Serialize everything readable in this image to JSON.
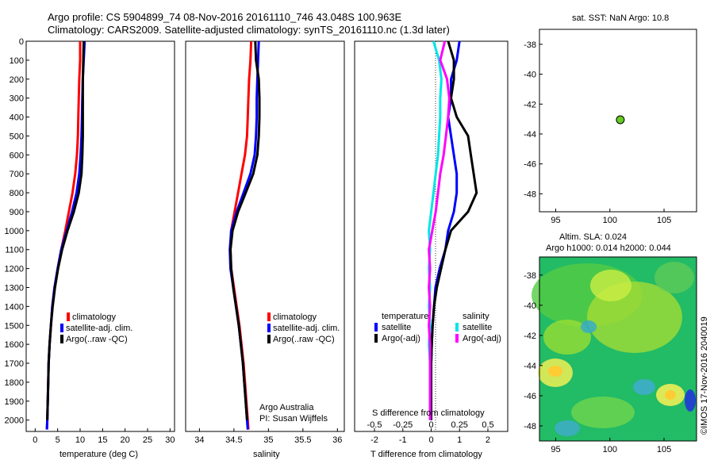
{
  "header": {
    "line1": "Argo profile: CS 5904899_74 08-Nov-2016 20161110_746 43.048S 100.963E",
    "line2": "Climatology: CARS2009. Satellite-adjusted climatology: synTS_20161110.nc (1.3d later)"
  },
  "depth_ticks": [
    "0",
    "100",
    "200",
    "300",
    "400",
    "500",
    "600",
    "700",
    "800",
    "900",
    "1000",
    "1100",
    "1200",
    "1300",
    "1400",
    "1500",
    "1600",
    "1700",
    "1800",
    "1900",
    "2000"
  ],
  "colors": {
    "climatology": "#ff0000",
    "satellite": "#0000ff",
    "argo": "#000000",
    "satellite_s": "#00e5e5",
    "argo_s": "#ff00ff",
    "sst_dot": "#66cc22"
  },
  "temp_panel": {
    "xlabel": "temperature (deg C)",
    "xticks": [
      "0",
      "5",
      "10",
      "15",
      "20",
      "25",
      "30"
    ],
    "legend": [
      "climatology",
      "satellite-adj. clim.",
      "Argo(..raw -QC)"
    ]
  },
  "sal_panel": {
    "xlabel": "salinity",
    "xticks": [
      "34",
      "34.5",
      "35",
      "35.5",
      "36"
    ],
    "legend": [
      "climatology",
      "satellite-adj. clim.",
      "Argo(..raw -QC)"
    ],
    "credit1": "Argo Australia",
    "credit2": "PI: Susan Wijffels"
  },
  "diff_panel": {
    "xlabel": "T difference from climatology",
    "xlabel_s": "S difference from climatology",
    "xticks": [
      "-2",
      "-1",
      "0",
      "1",
      "2"
    ],
    "xticks_s": [
      "-0.5",
      "-0.25",
      "0",
      "0.25",
      "0.5"
    ],
    "legend_t_title": "temperature",
    "legend_s_title": "salinity",
    "legend_t": [
      "satellite",
      "Argo(-adj)"
    ],
    "legend_s": [
      "satellite",
      "Argo(-adj)"
    ]
  },
  "map_panel": {
    "title": "sat. SST: NaN Argo: 10.8",
    "yticks": [
      "-38",
      "-40",
      "-42",
      "-44",
      "-46",
      "-48"
    ],
    "xticks": [
      "95",
      "100",
      "105"
    ],
    "point": {
      "lon": 100.963,
      "lat": -43.048
    }
  },
  "sla_panel": {
    "title1": "Altim. SLA: 0.024",
    "title2": "Argo h1000: 0.014 h2000: 0.044",
    "yticks": [
      "-38",
      "-40",
      "-42",
      "-44",
      "-46",
      "-48"
    ],
    "xticks": [
      "95",
      "100",
      "105"
    ],
    "watermark": "©IMOS 17-Nov-2016 2040019"
  },
  "chart_data": [
    {
      "type": "line",
      "xlabel": "temperature (deg C)",
      "ylabel": "",
      "xlim": [
        -2,
        31
      ],
      "ylim": [
        2060,
        0
      ],
      "series": [
        {
          "name": "climatology",
          "x": [
            10,
            10,
            9.8,
            9.7,
            9.6,
            9.5,
            9.3,
            8.9,
            8.3,
            7.5,
            6.7,
            5.8,
            5.0,
            4.3,
            3.8,
            3.5,
            3.2,
            3.0,
            2.9,
            2.8,
            2.7,
            2.6
          ],
          "y": [
            0,
            100,
            200,
            300,
            400,
            500,
            600,
            700,
            800,
            900,
            1000,
            1100,
            1200,
            1300,
            1400,
            1500,
            1600,
            1700,
            1800,
            1900,
            2000,
            2050
          ]
        },
        {
          "name": "satellite-adj. clim.",
          "x": [
            11,
            10.8,
            10.6,
            10.5,
            10.4,
            10.3,
            10.1,
            9.8,
            9.2,
            8.2,
            7.0,
            5.8,
            5.0,
            4.3,
            3.8,
            3.5,
            3.2,
            3.0,
            2.9,
            2.8,
            2.7,
            2.6
          ],
          "y": [
            0,
            100,
            200,
            300,
            400,
            500,
            600,
            700,
            800,
            900,
            1000,
            1100,
            1200,
            1300,
            1400,
            1500,
            1600,
            1700,
            1800,
            1900,
            2000,
            2050
          ]
        },
        {
          "name": "Argo(..raw -QC)",
          "x": [
            10.8,
            10.7,
            10.6,
            10.6,
            10.6,
            10.6,
            10.5,
            10.3,
            9.7,
            8.6,
            7.2,
            6.0,
            5.1,
            4.4,
            3.9,
            3.5,
            3.2,
            3.0,
            2.9,
            2.8,
            2.7
          ],
          "y": [
            0,
            100,
            200,
            300,
            400,
            500,
            600,
            700,
            800,
            900,
            1000,
            1100,
            1200,
            1300,
            1400,
            1500,
            1600,
            1700,
            1800,
            1900,
            2000
          ]
        }
      ]
    },
    {
      "type": "line",
      "xlabel": "salinity",
      "ylabel": "",
      "xlim": [
        33.8,
        36.1
      ],
      "ylim": [
        2060,
        0
      ],
      "series": [
        {
          "name": "climatology",
          "x": [
            34.75,
            34.74,
            34.72,
            34.71,
            34.7,
            34.69,
            34.66,
            34.61,
            34.56,
            34.51,
            34.46,
            34.45,
            34.46,
            34.5,
            34.54,
            34.58,
            34.61,
            34.64,
            34.66,
            34.68,
            34.7,
            34.71
          ],
          "y": [
            0,
            100,
            200,
            300,
            400,
            500,
            600,
            700,
            800,
            900,
            1000,
            1100,
            1200,
            1300,
            1400,
            1500,
            1600,
            1700,
            1800,
            1900,
            2000,
            2050
          ]
        },
        {
          "name": "satellite-adj. clim.",
          "x": [
            34.86,
            34.85,
            34.84,
            34.83,
            34.83,
            34.82,
            34.8,
            34.74,
            34.64,
            34.54,
            34.46,
            34.44,
            34.45,
            34.49,
            34.53,
            34.57,
            34.6,
            34.63,
            34.65,
            34.67,
            34.69,
            34.7
          ],
          "y": [
            0,
            100,
            200,
            300,
            400,
            500,
            600,
            700,
            800,
            900,
            1000,
            1100,
            1200,
            1300,
            1400,
            1500,
            1600,
            1700,
            1800,
            1900,
            2000,
            2050
          ]
        },
        {
          "name": "Argo(..raw -QC)",
          "x": [
            34.81,
            34.82,
            34.86,
            34.87,
            34.87,
            34.86,
            34.84,
            34.78,
            34.67,
            34.56,
            34.48,
            34.45,
            34.46,
            34.49,
            34.53,
            34.57,
            34.6,
            34.63,
            34.65,
            34.67,
            34.69
          ],
          "y": [
            0,
            100,
            200,
            300,
            400,
            500,
            600,
            700,
            800,
            900,
            1000,
            1100,
            1200,
            1300,
            1400,
            1500,
            1600,
            1700,
            1800,
            1900,
            2000
          ]
        }
      ]
    },
    {
      "type": "line",
      "xlabel": "T difference from climatology",
      "ylabel": "",
      "xlim": [
        -2.7,
        2.7
      ],
      "ylim": [
        2060,
        0
      ],
      "series": [
        {
          "name": "temperature satellite",
          "x": [
            1.0,
            0.9,
            0.7,
            0.7,
            0.6,
            0.7,
            0.8,
            0.9,
            0.9,
            0.8,
            0.6,
            0.5,
            0.3,
            0.15,
            0.1,
            0.05,
            0.02,
            0.0,
            0.0,
            0.0,
            0.0
          ],
          "y": [
            0,
            100,
            200,
            300,
            400,
            500,
            600,
            700,
            800,
            900,
            1000,
            1100,
            1200,
            1300,
            1400,
            1500,
            1600,
            1700,
            1800,
            1900,
            2000
          ]
        },
        {
          "name": "temperature Argo(-adj)",
          "x": [
            0.6,
            0.8,
            0.8,
            0.7,
            0.9,
            1.3,
            1.4,
            1.5,
            1.6,
            1.3,
            0.7,
            0.5,
            0.35,
            0.2,
            0.1,
            0.05,
            0.02,
            0.0,
            0.0,
            0.0,
            0.0
          ],
          "y": [
            0,
            100,
            200,
            300,
            400,
            500,
            600,
            700,
            800,
            900,
            1000,
            1100,
            1200,
            1300,
            1400,
            1500,
            1600,
            1700,
            1800,
            1900,
            2000
          ]
        }
      ]
    },
    {
      "type": "line",
      "xlabel": "S difference from climatology",
      "ylabel": "",
      "xlim": [
        -0.675,
        0.675
      ],
      "ylim": [
        2060,
        0
      ],
      "series": [
        {
          "name": "salinity satellite",
          "x": [
            0.02,
            0.07,
            0.09,
            0.08,
            0.08,
            0.07,
            0.06,
            0.04,
            0.02,
            0.0,
            -0.02,
            -0.01,
            -0.02,
            -0.01,
            -0.02,
            -0.01,
            -0.02,
            -0.01,
            -0.01,
            -0.01,
            -0.01
          ],
          "y": [
            0,
            100,
            200,
            300,
            400,
            500,
            600,
            700,
            800,
            900,
            1000,
            1100,
            1200,
            1300,
            1400,
            1500,
            1600,
            1700,
            1800,
            1900,
            2000
          ]
        },
        {
          "name": "salinity Argo(-adj)",
          "x": [
            0.12,
            0.08,
            0.14,
            0.16,
            0.15,
            0.13,
            0.11,
            0.08,
            0.06,
            0.04,
            0.01,
            -0.02,
            -0.01,
            -0.02,
            -0.01,
            -0.02,
            -0.01,
            -0.01,
            -0.01,
            -0.01,
            -0.01
          ],
          "y": [
            0,
            100,
            200,
            300,
            400,
            500,
            600,
            700,
            800,
            900,
            1000,
            1100,
            1200,
            1300,
            1400,
            1500,
            1600,
            1700,
            1800,
            1900,
            2000
          ]
        }
      ]
    },
    {
      "type": "scatter",
      "xlabel": "",
      "ylabel": "",
      "xlim": [
        93.5,
        108
      ],
      "ylim": [
        -49.2,
        -37
      ],
      "series": [
        {
          "name": "Argo",
          "x": [
            100.963
          ],
          "y": [
            -43.048
          ]
        }
      ]
    }
  ]
}
